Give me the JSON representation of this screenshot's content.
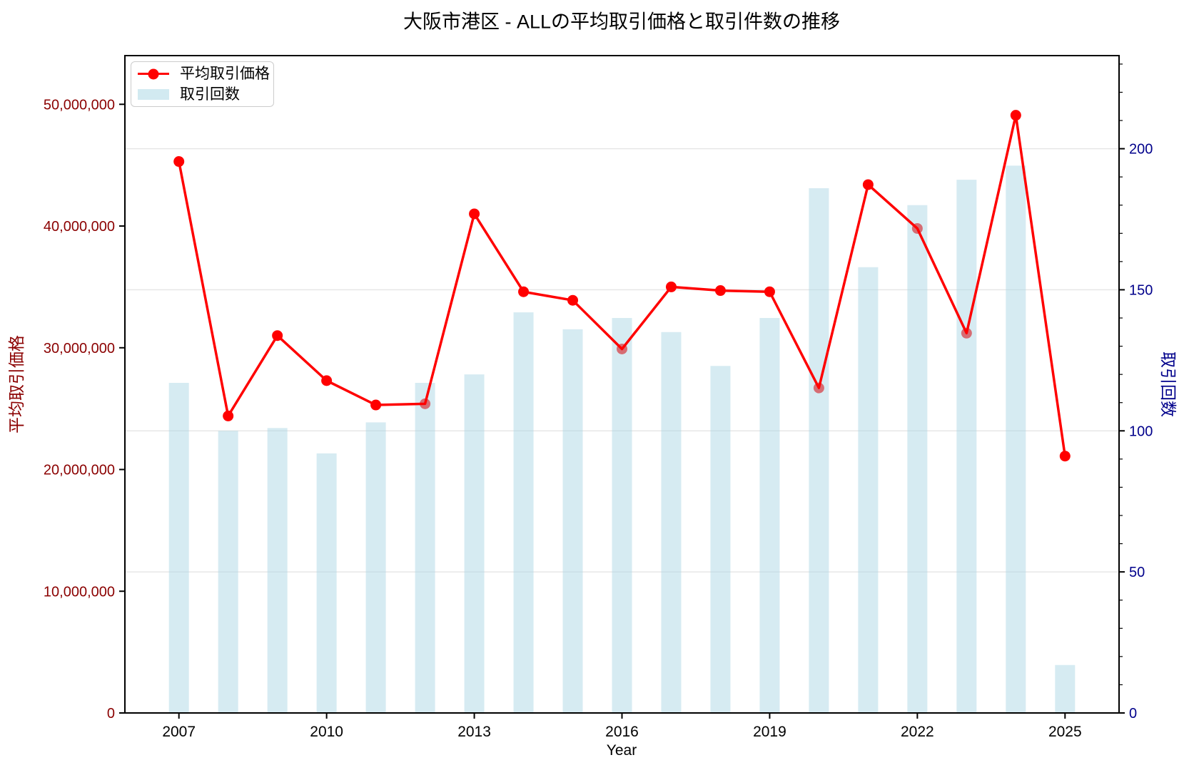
{
  "title": "大阪市港区 - ALLの平均取引価格と取引件数の推移",
  "legend": {
    "price_label": "平均取引価格",
    "count_label": "取引回数"
  },
  "axes": {
    "x_label": "Year",
    "y_left_label": "平均取引価格",
    "y_right_label": "取引回数",
    "x_tick_labels": [
      "2007",
      "2010",
      "2013",
      "2016",
      "2019",
      "2022",
      "2025"
    ],
    "y_left_tick_labels": [
      "0",
      "10,000,000",
      "20,000,000",
      "30,000,000",
      "40,000,000",
      "50,000,000"
    ],
    "y_right_tick_labels": [
      "0",
      "50",
      "100",
      "150",
      "200"
    ]
  },
  "colors": {
    "line": "#ff0000",
    "bar": "#add8e6",
    "bar_opacity": 0.5,
    "left_axis_text": "#8b0000",
    "right_axis_text": "#00008b",
    "grid": "#e5e5e5",
    "axis_text": "#000000",
    "spine": "#000000"
  },
  "chart_data": {
    "type": "bar+line",
    "title": "大阪市港区 - ALLの平均取引価格と取引件数の推移",
    "xlabel": "Year",
    "ylabel_left": "平均取引価格",
    "ylabel_right": "取引回数",
    "x": [
      2007,
      2008,
      2009,
      2010,
      2011,
      2012,
      2013,
      2014,
      2015,
      2016,
      2017,
      2018,
      2019,
      2020,
      2021,
      2022,
      2023,
      2024,
      2025
    ],
    "series": [
      {
        "name": "平均取引価格",
        "type": "line",
        "axis": "left",
        "values": [
          45300000,
          24400000,
          31000000,
          27300000,
          25300000,
          25400000,
          41000000,
          34600000,
          33900000,
          29900000,
          35000000,
          34700000,
          34600000,
          26700000,
          43400000,
          39800000,
          31200000,
          49100000,
          21100000
        ]
      },
      {
        "name": "取引回数",
        "type": "bar",
        "axis": "right",
        "values": [
          117,
          100,
          101,
          92,
          103,
          117,
          120,
          142,
          136,
          140,
          135,
          123,
          140,
          186,
          158,
          180,
          189,
          194,
          17
        ]
      }
    ],
    "x_ticks_shown": [
      2007,
      2010,
      2013,
      2016,
      2019,
      2022,
      2025
    ],
    "y_left_ticks": [
      0,
      10000000,
      20000000,
      30000000,
      40000000,
      50000000
    ],
    "y_right_ticks": [
      0,
      50,
      100,
      150,
      200
    ],
    "y_right_minor_step": 10,
    "ylim_left": [
      0,
      54000000
    ],
    "ylim_right": [
      0,
      233
    ],
    "grid": "horizontal-on-right-axis-ticks",
    "legend_position": "upper-left"
  }
}
